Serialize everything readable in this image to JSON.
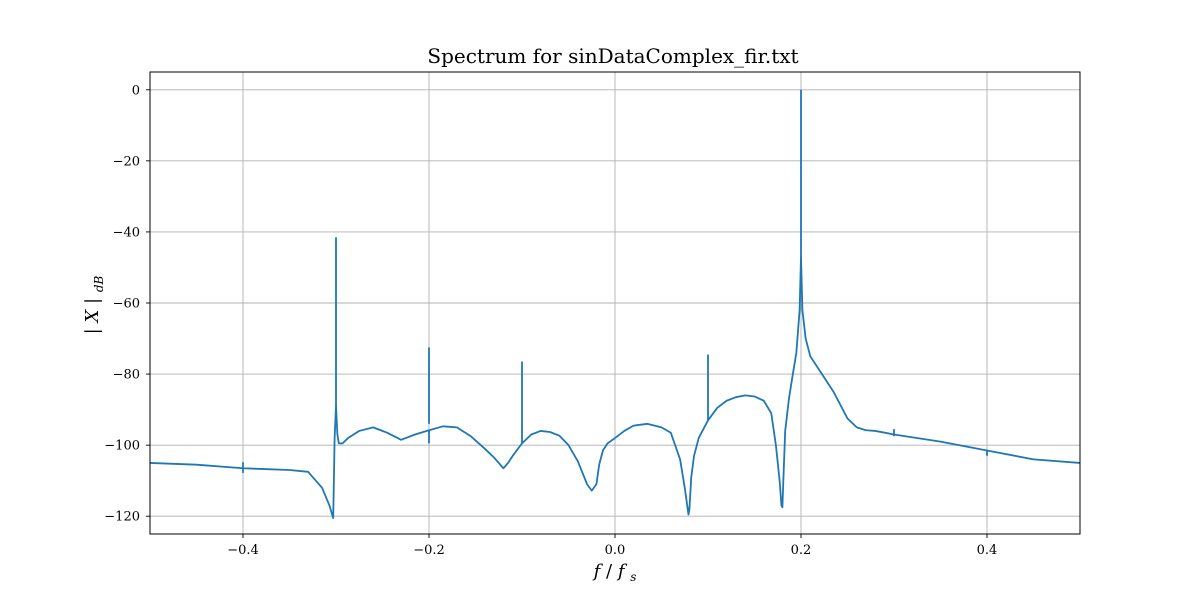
{
  "chart_data": {
    "type": "line",
    "title": "Spectrum for sinDataComplex_fir.txt",
    "xlabel": "f / f_s",
    "ylabel": "|X|_dB",
    "xlim": [
      -0.5,
      0.5
    ],
    "ylim": [
      -125,
      5
    ],
    "grid": true,
    "x_ticks": [
      -0.4,
      -0.2,
      0.0,
      0.2,
      0.4
    ],
    "x_tick_labels": [
      "−0.4",
      "−0.2",
      "0.0",
      "0.2",
      "0.4"
    ],
    "y_ticks": [
      0,
      -20,
      -40,
      -60,
      -80,
      -100,
      -120
    ],
    "y_tick_labels": [
      "0",
      "−20",
      "−40",
      "−60",
      "−80",
      "−100",
      "−120"
    ],
    "line_color": "#1f77b4",
    "series": [
      {
        "x": [
          -0.5,
          -0.45,
          -0.4,
          -0.37,
          -0.35,
          -0.33,
          -0.315,
          -0.307,
          -0.303,
          -0.3015,
          -0.3,
          -0.2985,
          -0.297,
          -0.293,
          -0.287,
          -0.275,
          -0.26,
          -0.245,
          -0.23,
          -0.215,
          -0.2,
          -0.185,
          -0.17,
          -0.155,
          -0.14,
          -0.13,
          -0.12,
          -0.115,
          -0.11,
          -0.1,
          -0.09,
          -0.08,
          -0.07,
          -0.06,
          -0.05,
          -0.04,
          -0.03,
          -0.025,
          -0.02,
          -0.017,
          -0.013,
          -0.008,
          0.0,
          0.01,
          0.02,
          0.035,
          0.05,
          0.06,
          0.07,
          0.075,
          0.079,
          0.08,
          0.082,
          0.085,
          0.09,
          0.1,
          0.11,
          0.12,
          0.13,
          0.14,
          0.15,
          0.16,
          0.168,
          0.173,
          0.177,
          0.179,
          0.18,
          0.181,
          0.183,
          0.187,
          0.19,
          0.195,
          0.1985,
          0.2,
          0.2015,
          0.205,
          0.21,
          0.22,
          0.235,
          0.25,
          0.26,
          0.27,
          0.28,
          0.3,
          0.35,
          0.4,
          0.45,
          0.5
        ],
        "y": [
          -105,
          -105.5,
          -106.5,
          -106.8,
          -107,
          -107.5,
          -112,
          -117,
          -120.5,
          -98,
          -89,
          -97,
          -99.5,
          -99.5,
          -98,
          -96,
          -95,
          -96.5,
          -98.5,
          -97,
          -95.8,
          -94.7,
          -95,
          -97.5,
          -101,
          -103.5,
          -106.5,
          -105,
          -103,
          -99.5,
          -97,
          -96,
          -96.3,
          -97.3,
          -100,
          -104.5,
          -111,
          -112.8,
          -111,
          -105.5,
          -101.5,
          -99.5,
          -98,
          -96,
          -94.5,
          -94,
          -95,
          -96.5,
          -104,
          -112,
          -119.5,
          -118,
          -109,
          -103,
          -98,
          -93,
          -89.5,
          -87.5,
          -86.5,
          -86,
          -86.3,
          -87.5,
          -91,
          -100,
          -110,
          -117,
          -117.5,
          -110,
          -96,
          -87,
          -82,
          -74,
          -62,
          -47,
          -62,
          -70,
          -75,
          -79,
          -85,
          -92.5,
          -95,
          -95.8,
          -96,
          -97,
          -99,
          -101.5,
          -104,
          -105
        ]
      }
    ],
    "spikes": [
      {
        "x": -0.4,
        "from": -104.8,
        "to": -107.8
      },
      {
        "x": -0.3,
        "from": -89,
        "to": -41.5
      },
      {
        "x": -0.2,
        "from": -94,
        "to": -72.5
      },
      {
        "x": -0.2,
        "from": -96,
        "to": -99.5
      },
      {
        "x": -0.1,
        "from": -99.5,
        "to": -76.5
      },
      {
        "x": 0.1,
        "from": -93,
        "to": -74.5
      },
      {
        "x": 0.2,
        "from": -47,
        "to": 0
      },
      {
        "x": 0.3,
        "from": -95.5,
        "to": -97.5
      },
      {
        "x": 0.4,
        "from": -101.5,
        "to": -103
      }
    ]
  }
}
